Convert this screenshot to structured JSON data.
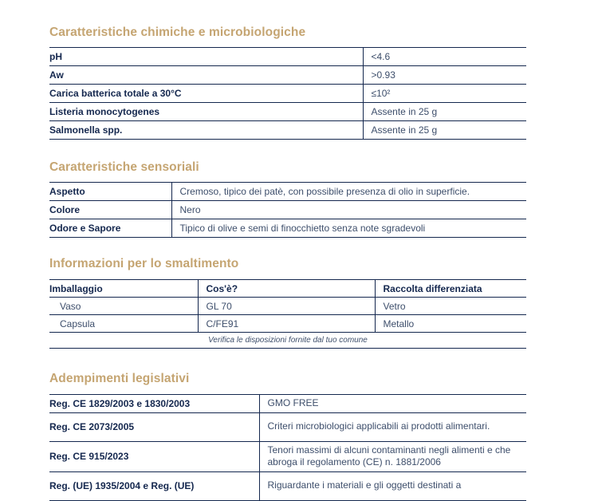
{
  "colors": {
    "accent_gold": "#C5A572",
    "navy": "#14274E",
    "body_text": "#3D4E6B",
    "background": "#FFFFFF"
  },
  "s1": {
    "title": "Caratteristiche chimiche e microbiologiche",
    "rows": [
      {
        "label": "pH",
        "value": "<4.6"
      },
      {
        "label": "Aw",
        "value": ">0.93"
      },
      {
        "label": "Carica batterica totale a 30°C",
        "value": "≤10²"
      },
      {
        "label": "Listeria monocytogenes",
        "value": "Assente in 25 g"
      },
      {
        "label": "Salmonella spp.",
        "value": "Assente in 25 g"
      }
    ]
  },
  "s2": {
    "title": "Caratteristiche sensoriali",
    "rows": [
      {
        "label": "Aspetto",
        "value": "Cremoso, tipico dei patè, con possibile presenza di olio in superficie."
      },
      {
        "label": "Colore",
        "value": "Nero"
      },
      {
        "label": "Odore e Sapore",
        "value": "Tipico di olive e semi di finocchietto senza note sgradevoli"
      }
    ]
  },
  "s3": {
    "title": "Informazioni per lo smaltimento",
    "headers": [
      "Imballaggio",
      "Cos'è?",
      "Raccolta differenziata"
    ],
    "rows": [
      [
        "Vaso",
        "GL 70",
        "Vetro"
      ],
      [
        "Capsula",
        "C/FE91",
        "Metallo"
      ]
    ],
    "note": "Verifica le disposizioni fornite dal tuo comune"
  },
  "s4": {
    "title": "Adempimenti legislativi",
    "rows": [
      {
        "label": "Reg. CE 1829/2003 e 1830/2003",
        "value": "GMO FREE"
      },
      {
        "label": "Reg. CE 2073/2005",
        "value": "Criteri microbiologici applicabili ai prodotti alimentari."
      },
      {
        "label": "Reg. CE 915/2023",
        "value": "Tenori massimi di alcuni contaminanti negli alimenti e che abroga il regolamento (CE) n. 1881/2006"
      },
      {
        "label": "Reg. (UE) 1935/2004 e Reg. (UE)",
        "value": "Riguardante i materiali e gli oggetti destinati a"
      }
    ]
  }
}
